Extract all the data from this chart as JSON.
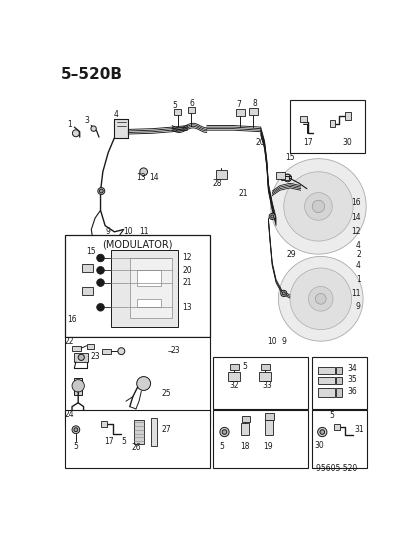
{
  "title": "5–520B",
  "bg": "#ffffff",
  "part_number": "95605 520",
  "fig_w": 4.14,
  "fig_h": 5.33,
  "dpi": 100,
  "gray1": "#e8e8e8",
  "gray2": "#d0d0d0",
  "gray3": "#b0b0b0"
}
